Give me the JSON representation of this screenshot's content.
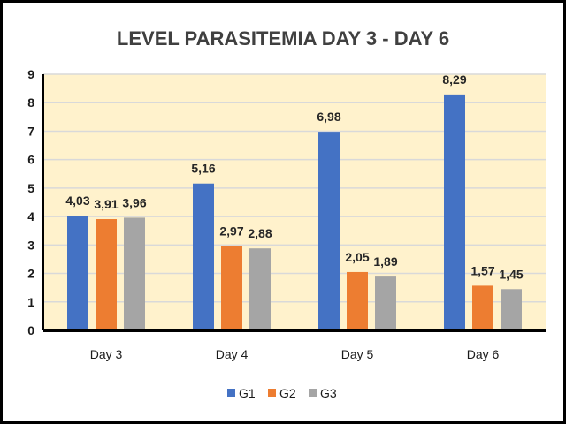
{
  "chart_data": {
    "type": "bar",
    "title": "LEVEL  PARASITEMIA DAY  3 - DAY 6",
    "xlabel": "",
    "ylabel": "",
    "categories": [
      "Day 3",
      "Day 4",
      "Day 5",
      "Day 6"
    ],
    "series": [
      {
        "name": "G1",
        "values": [
          4.03,
          5.16,
          6.98,
          8.29
        ],
        "labels": [
          "4,03",
          "5,16",
          "6,98",
          "8,29"
        ],
        "color": "#4472c4"
      },
      {
        "name": "G2",
        "values": [
          3.91,
          2.97,
          2.05,
          1.57
        ],
        "labels": [
          "3,91",
          "2,97",
          "2,05",
          "1,57"
        ],
        "color": "#ed7d31"
      },
      {
        "name": "G3",
        "values": [
          3.96,
          2.88,
          1.89,
          1.45
        ],
        "labels": [
          "3,96",
          "2,88",
          "1,89",
          "1,45"
        ],
        "color": "#a5a5a5"
      }
    ],
    "ylim": [
      0,
      9
    ],
    "yticks": [
      "0",
      "1",
      "2",
      "3",
      "4",
      "5",
      "6",
      "7",
      "8",
      "9"
    ],
    "grid": true,
    "legend": "bottom",
    "plot_background": "#fff2cc"
  }
}
